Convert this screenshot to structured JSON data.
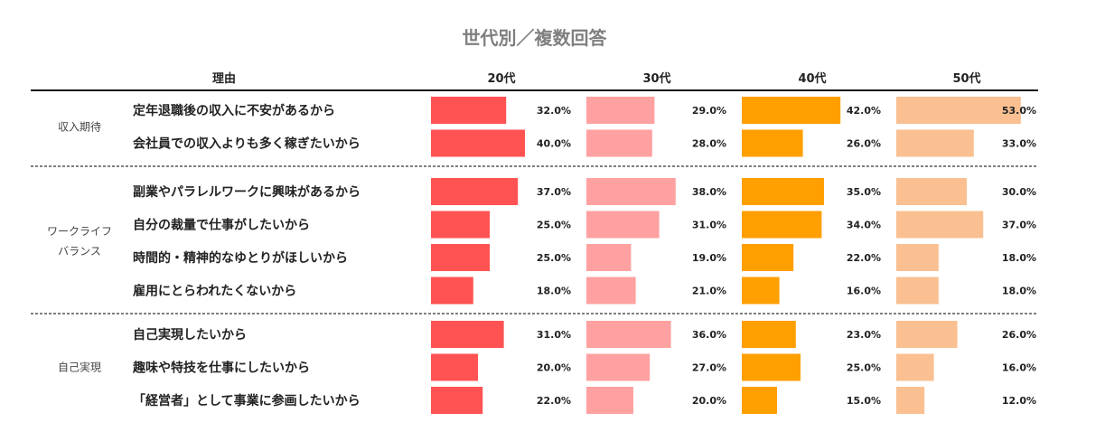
{
  "chart_data": {
    "type": "bar",
    "title": "世代別／複数回答",
    "reason_header": "理由",
    "series": [
      {
        "name": "20代",
        "color": "#ff5252"
      },
      {
        "name": "30代",
        "color": "#ffa1a1"
      },
      {
        "name": "40代",
        "color": "#ff9f00"
      },
      {
        "name": "50代",
        "color": "#fac091"
      }
    ],
    "value_unit": "%",
    "groups": [
      {
        "label": [
          "収入期待"
        ],
        "items": [
          {
            "reason": "定年退職後の収入に不安があるから",
            "values": [
              32,
              29,
              42,
              53
            ]
          },
          {
            "reason": "会社員での収入よりも多く稼ぎたいから",
            "values": [
              40,
              28,
              26,
              33
            ]
          }
        ]
      },
      {
        "label": [
          "ワークライフ",
          "バランス"
        ],
        "items": [
          {
            "reason": "副業やパラレルワークに興味があるから",
            "values": [
              37,
              38,
              35,
              30
            ]
          },
          {
            "reason": "自分の裁量で仕事がしたいから",
            "values": [
              25,
              31,
              34,
              37
            ]
          },
          {
            "reason": "時間的・精神的なゆとりがほしいから",
            "values": [
              25,
              19,
              22,
              18
            ]
          },
          {
            "reason": "雇用にとらわれたくないから",
            "values": [
              18,
              21,
              16,
              18
            ]
          }
        ]
      },
      {
        "label": [
          "自己実現"
        ],
        "items": [
          {
            "reason": "自己実現したいから",
            "values": [
              31,
              36,
              23,
              26
            ]
          },
          {
            "reason": "趣味や特技を仕事にしたいから",
            "values": [
              20,
              27,
              25,
              16
            ]
          },
          {
            "reason": "「経営者」として事業に参画したいから",
            "values": [
              22,
              20,
              15,
              12
            ]
          }
        ]
      }
    ]
  }
}
